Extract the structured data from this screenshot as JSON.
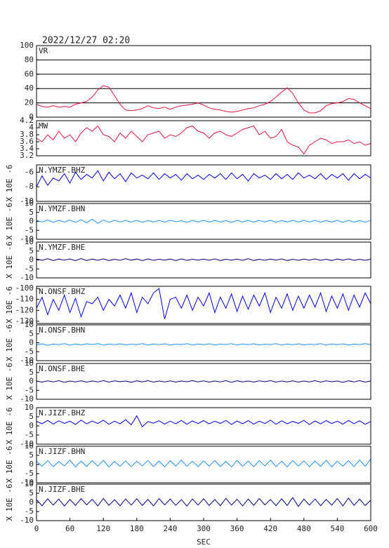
{
  "chart_data": {
    "type": "line",
    "title": "2022/12/27 02:20",
    "xlabel": "SEC",
    "xlim": [
      0,
      600
    ],
    "xticks": [
      0,
      60,
      120,
      180,
      240,
      300,
      360,
      420,
      480,
      540,
      600
    ],
    "x": [
      0,
      10,
      20,
      30,
      40,
      50,
      60,
      70,
      80,
      90,
      100,
      110,
      120,
      130,
      140,
      150,
      160,
      170,
      180,
      190,
      200,
      210,
      220,
      230,
      240,
      250,
      260,
      270,
      280,
      290,
      300,
      310,
      320,
      330,
      340,
      350,
      360,
      370,
      380,
      390,
      400,
      410,
      420,
      430,
      440,
      450,
      460,
      470,
      480,
      490,
      500,
      510,
      520,
      530,
      540,
      550,
      560,
      570,
      580,
      590,
      600
    ],
    "panels": [
      {
        "name": "VR",
        "color": "#dc143c",
        "ylim": [
          0,
          100
        ],
        "yticks": [
          0,
          20,
          40,
          60,
          80,
          100
        ],
        "grid": true,
        "values": [
          18,
          15,
          14,
          16,
          14,
          15,
          14,
          18,
          20,
          22,
          28,
          38,
          44,
          42,
          30,
          18,
          10,
          9,
          10,
          12,
          16,
          13,
          12,
          14,
          11,
          14,
          16,
          17,
          18,
          20,
          17,
          13,
          11,
          10,
          8,
          7,
          8,
          10,
          12,
          13,
          16,
          18,
          22,
          28,
          35,
          41,
          33,
          20,
          10,
          6,
          6,
          9,
          16,
          19,
          20,
          22,
          26,
          25,
          20,
          16,
          12
        ]
      },
      {
        "name": "MW",
        "color": "#dc143c",
        "ylim": [
          3.2,
          4.2
        ],
        "yticks": [
          3.2,
          3.4,
          3.6,
          3.8,
          4.0,
          4.2
        ],
        "grid": false,
        "values": [
          3.7,
          3.6,
          3.8,
          3.65,
          3.9,
          3.7,
          3.8,
          3.6,
          3.85,
          4.0,
          3.9,
          4.05,
          3.8,
          3.75,
          3.6,
          3.85,
          3.7,
          3.9,
          3.75,
          3.6,
          3.8,
          3.85,
          3.9,
          3.7,
          3.8,
          3.75,
          3.85,
          4.0,
          4.05,
          3.9,
          3.85,
          3.7,
          3.85,
          3.9,
          3.8,
          3.75,
          3.85,
          3.95,
          4.0,
          4.05,
          3.8,
          3.9,
          3.7,
          3.75,
          3.95,
          3.6,
          3.5,
          3.45,
          3.25,
          3.5,
          3.6,
          3.7,
          3.65,
          3.55,
          3.6,
          3.6,
          3.65,
          3.55,
          3.6,
          3.5,
          3.55
        ]
      },
      {
        "name": "N.YMZF.BHZ",
        "ylabel": "X 10E -6",
        "color": "#0000e0",
        "ylim": [
          -10,
          -5
        ],
        "yticks": [
          -10,
          -8,
          -6
        ],
        "grid": false,
        "values": [
          -8,
          -6.5,
          -7.8,
          -6.8,
          -7.2,
          -6.2,
          -7.5,
          -6,
          -7,
          -6.3,
          -6.8,
          -5.8,
          -7.2,
          -6,
          -6.9,
          -6.2,
          -7.3,
          -6.1,
          -6.8,
          -6.4,
          -6.9,
          -6.1,
          -7,
          -6.2,
          -6.8,
          -6.3,
          -7.1,
          -6.2,
          -6.9,
          -6.4,
          -7,
          -6.3,
          -6.8,
          -6.2,
          -7,
          -6.1,
          -6.9,
          -6.3,
          -7.2,
          -6.2,
          -6.8,
          -6.4,
          -7,
          -6.2,
          -6.9,
          -6.3,
          -7,
          -6.1,
          -6.8,
          -6.4,
          -6.9,
          -6.2,
          -7,
          -6.3,
          -6.8,
          -6.2,
          -7.1,
          -6.2,
          -6.9,
          -6.3,
          -6.8
        ]
      },
      {
        "name": "N.YMZF.BHN",
        "ylabel": "X 10E -6",
        "color": "#1e90ff",
        "ylim": [
          -10,
          10
        ],
        "yticks": [
          -10,
          -5,
          0,
          5,
          10
        ],
        "grid": false,
        "values": [
          0.5,
          -0.3,
          0.8,
          -0.5,
          0.6,
          -0.4,
          0.7,
          -0.6,
          0.9,
          -0.8,
          1.2,
          -1.0,
          0.8,
          -0.5,
          0.6,
          -0.3,
          0.5,
          -0.4,
          0.6,
          -0.5,
          0.4,
          -0.3,
          0.5,
          -0.4,
          0.6,
          -0.2,
          0.4,
          -0.5,
          0.5,
          -0.3,
          0.6,
          -0.4,
          0.5,
          -0.3,
          0.4,
          -0.5,
          0.6,
          -0.3,
          0.5,
          -0.4,
          0.5,
          -0.3,
          0.6,
          -0.4,
          0.4,
          -0.3,
          0.5,
          -0.4,
          0.6,
          -0.3,
          0.5,
          -0.4,
          0.4,
          -0.3,
          0.6,
          -0.5,
          0.5,
          -0.3,
          0.4,
          -0.4,
          0.5
        ]
      },
      {
        "name": "N.YMZF.BHE",
        "ylabel": "X 10E -6",
        "color": "#000080",
        "ylim": [
          -10,
          10
        ],
        "yticks": [
          -10,
          -5,
          0,
          5,
          10
        ],
        "grid": false,
        "values": [
          0.6,
          -0.2,
          0.7,
          -0.3,
          0.5,
          -0.1,
          0.6,
          -0.4,
          0.8,
          -0.3,
          0.5,
          -0.2,
          0.6,
          -0.3,
          0.4,
          -0.2,
          0.7,
          -0.1,
          0.5,
          -0.3,
          0.6,
          -0.2,
          0.4,
          -0.1,
          0.5,
          -0.3,
          0.6,
          -0.2,
          0.4,
          -0.1,
          0.5,
          -0.2,
          0.6,
          -0.3,
          0.4,
          -0.1,
          0.5,
          -0.2,
          0.7,
          -0.3,
          0.4,
          -0.2,
          0.5,
          -0.1,
          0.6,
          -0.3,
          0.4,
          -0.2,
          0.5,
          -0.1,
          0.6,
          -0.2,
          0.4,
          -0.3,
          0.5,
          -0.1,
          0.6,
          -0.2,
          0.4,
          -0.2,
          0.5
        ]
      },
      {
        "name": "N.ONSF.BHZ",
        "ylabel": "X 10E -6",
        "color": "#0000e0",
        "ylim": [
          -132,
          -98
        ],
        "yticks": [
          -130,
          -120,
          -110,
          -100
        ],
        "grid": false,
        "values": [
          -118,
          -108,
          -124,
          -110,
          -120,
          -106,
          -122,
          -109,
          -126,
          -112,
          -114,
          -108,
          -120,
          -110,
          -116,
          -106,
          -118,
          -104,
          -122,
          -108,
          -114,
          -104,
          -100,
          -128,
          -110,
          -108,
          -118,
          -106,
          -120,
          -108,
          -116,
          -104,
          -122,
          -108,
          -118,
          -105,
          -121,
          -107,
          -119,
          -106,
          -116,
          -104,
          -122,
          -108,
          -118,
          -105,
          -120,
          -107,
          -118,
          -106,
          -117,
          -104,
          -121,
          -107,
          -118,
          -105,
          -120,
          -106,
          -117,
          -104,
          -114
        ]
      },
      {
        "name": "N.ONSF.BHN",
        "ylabel": "X 10E -6",
        "color": "#1e90ff",
        "ylim": [
          -10,
          10
        ],
        "yticks": [
          -10,
          -5,
          0,
          5,
          10
        ],
        "grid": false,
        "values": [
          -1.2,
          -0.6,
          -1.4,
          -0.8,
          -1.1,
          -0.5,
          -1.3,
          -0.7,
          -1.2,
          -0.6,
          -1.0,
          -0.5,
          -1.3,
          -0.7,
          -1.1,
          -0.6,
          -1.2,
          -0.8,
          -1.0,
          -0.5,
          -1.3,
          -0.7,
          -1.1,
          -0.6,
          -1.2,
          -0.8,
          -1.0,
          -0.5,
          -1.3,
          -0.7,
          -1.1,
          -0.6,
          -1.2,
          -0.8,
          -1.0,
          -0.5,
          -1.3,
          -0.7,
          -1.1,
          -0.6,
          -1.2,
          -0.8,
          -1.0,
          -0.5,
          -1.3,
          -0.7,
          -1.1,
          -0.6,
          -1.2,
          -0.8,
          -1.0,
          -0.5,
          -1.3,
          -0.7,
          -1.1,
          -0.6,
          -1.2,
          -0.8,
          -1.0,
          -0.5,
          -1.1
        ]
      },
      {
        "name": "N.ONSF.BHE",
        "ylabel": "X 10E -6",
        "color": "#000080",
        "ylim": [
          -10,
          10
        ],
        "yticks": [
          -10,
          -5,
          0,
          5,
          10
        ],
        "grid": false,
        "values": [
          0.2,
          -0.4,
          0.3,
          -0.3,
          0.4,
          -0.5,
          0.2,
          -0.3,
          0.3,
          -0.4,
          0.2,
          -0.3,
          0.4,
          -0.4,
          0.3,
          -0.2,
          0.2,
          -0.5,
          0.3,
          -0.3,
          0.4,
          -0.4,
          0.2,
          -0.3,
          0.3,
          -0.4,
          0.2,
          -0.2,
          0.4,
          -0.3,
          0.3,
          -0.4,
          0.2,
          -0.3,
          0.4,
          -0.5,
          0.3,
          -0.3,
          0.2,
          -0.4,
          0.3,
          -0.2,
          0.4,
          -0.4,
          0.2,
          -0.3,
          0.3,
          -0.4,
          0.2,
          -0.3,
          0.4,
          -0.4,
          0.3,
          -0.2,
          0.2,
          -0.5,
          0.3,
          -0.3,
          0.4,
          -0.4,
          0.2
        ]
      },
      {
        "name": "N.JIZF.BHZ",
        "ylabel": "X 10E -6",
        "color": "#0000e0",
        "ylim": [
          -10,
          10
        ],
        "yticks": [
          -10,
          -5,
          0,
          5,
          10
        ],
        "grid": false,
        "values": [
          2.5,
          1.2,
          3.0,
          1.0,
          2.8,
          1.4,
          2.6,
          0.8,
          3.2,
          1.1,
          2.7,
          1.3,
          3.1,
          0.9,
          2.6,
          1.2,
          3.4,
          0.6,
          5.5,
          -0.5,
          2.4,
          1.5,
          2.8,
          1.0,
          2.6,
          1.2,
          3.0,
          0.9,
          2.7,
          1.3,
          2.9,
          1.1,
          2.6,
          1.4,
          3.0,
          0.8,
          2.7,
          1.2,
          2.9,
          1.0,
          2.6,
          1.3,
          3.1,
          0.9,
          2.8,
          1.2,
          2.5,
          1.4,
          3.0,
          0.8,
          2.7,
          1.1,
          2.9,
          1.3,
          2.6,
          1.0,
          3.0,
          1.2,
          2.8,
          0.9,
          2.4
        ]
      },
      {
        "name": "N.JIZF.BHN",
        "ylabel": "X 10E -6",
        "color": "#1e90ff",
        "ylim": [
          -10,
          10
        ],
        "yticks": [
          -10,
          -5,
          0,
          5,
          10
        ],
        "grid": false,
        "values": [
          1.8,
          -1.0,
          2.2,
          -1.2,
          1.6,
          -0.8,
          2.4,
          -1.4,
          1.9,
          -1.1,
          2.1,
          -0.9,
          2.3,
          -1.3,
          1.7,
          -1.0,
          2.0,
          -1.2,
          1.8,
          -0.8,
          2.2,
          -1.1,
          1.9,
          -1.3,
          2.1,
          -0.9,
          2.4,
          -1.0,
          1.8,
          -1.2,
          2.0,
          -0.9,
          2.2,
          -1.1,
          1.7,
          -1.3,
          2.3,
          -1.0,
          1.9,
          -1.2,
          2.1,
          -0.8,
          2.4,
          -1.1,
          1.8,
          -1.3,
          2.2,
          -0.9,
          2.0,
          -1.2,
          1.9,
          -1.0,
          2.3,
          -1.3,
          1.8,
          -0.9,
          2.1,
          -1.1,
          2.5,
          -1.0,
          3.0
        ]
      },
      {
        "name": "N.JIZF.BHE",
        "ylabel": "X 10E -6",
        "color": "#000080",
        "ylim": [
          -10,
          10
        ],
        "yticks": [
          -10,
          -5,
          0,
          5,
          10
        ],
        "grid": false,
        "values": [
          1.5,
          -1.8,
          2.0,
          -1.5,
          1.8,
          -2.0,
          1.6,
          -1.7,
          2.1,
          -1.4,
          1.7,
          -1.9,
          2.2,
          -1.6,
          1.5,
          -1.8,
          1.9,
          -1.5,
          2.0,
          -1.7,
          1.6,
          -1.9,
          2.1,
          -1.4,
          1.8,
          -1.6,
          1.5,
          -2.0,
          1.9,
          -1.5,
          2.0,
          -1.7,
          1.6,
          -1.8,
          2.2,
          -1.5,
          1.7,
          -1.9,
          1.8,
          -1.6,
          2.1,
          -1.4,
          1.6,
          -1.8,
          2.0,
          -1.7,
          2.6,
          -2.2,
          1.8,
          -1.5,
          1.9,
          -1.8,
          1.6,
          -1.5,
          2.1,
          -1.9,
          2.4,
          -1.6,
          1.8,
          -1.7,
          1.2
        ]
      }
    ]
  }
}
